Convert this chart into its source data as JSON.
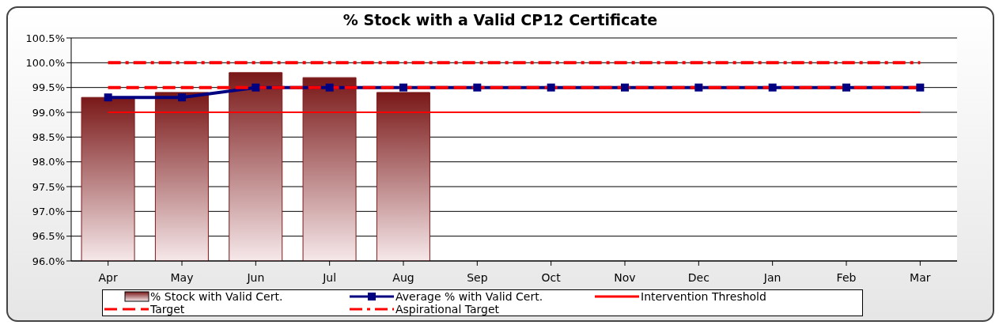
{
  "chart_data": {
    "type": "bar",
    "title": "% Stock with a Valid CP12 Certificate",
    "categories": [
      "Apr",
      "May",
      "Jun",
      "Jul",
      "Aug",
      "Sep",
      "Oct",
      "Nov",
      "Dec",
      "Jan",
      "Feb",
      "Mar"
    ],
    "series": [
      {
        "name": "% Stock with Valid Cert.",
        "color": "#7a1818",
        "values": [
          99.3,
          99.4,
          99.8,
          99.7,
          99.4,
          null,
          null,
          null,
          null,
          null,
          null,
          null
        ]
      },
      {
        "name": "Average % with Valid Cert.",
        "type": "line",
        "color": "#000080",
        "marker": "square",
        "line_style": "solid",
        "values": [
          99.3,
          99.3,
          99.5,
          99.5,
          99.5,
          99.5,
          99.5,
          99.5,
          99.5,
          99.5,
          99.5,
          99.5
        ]
      },
      {
        "name": "Intervention Threshold",
        "type": "line",
        "color": "#ff0000",
        "marker": "none",
        "line_style": "solid",
        "values": [
          99.0,
          99.0,
          99.0,
          99.0,
          99.0,
          99.0,
          99.0,
          99.0,
          99.0,
          99.0,
          99.0,
          99.0
        ]
      },
      {
        "name": "Target",
        "type": "line",
        "color": "#ff0000",
        "marker": "none",
        "line_style": "dashed",
        "values": [
          99.5,
          99.5,
          99.5,
          99.5,
          99.5,
          99.5,
          99.5,
          99.5,
          99.5,
          99.5,
          99.5,
          99.5
        ]
      },
      {
        "name": "Aspirational Target",
        "type": "line",
        "color": "#ff0000",
        "marker": "none",
        "line_style": "dashdot",
        "values": [
          100.0,
          100.0,
          100.0,
          100.0,
          100.0,
          100.0,
          100.0,
          100.0,
          100.0,
          100.0,
          100.0,
          100.0
        ]
      }
    ],
    "ylim": [
      96.0,
      100.5
    ],
    "yticks": [
      {
        "value": 96.0,
        "label": "96.0%"
      },
      {
        "value": 96.5,
        "label": "96.5%"
      },
      {
        "value": 97.0,
        "label": "97.0%"
      },
      {
        "value": 97.5,
        "label": "97.5%"
      },
      {
        "value": 98.0,
        "label": "98.0%"
      },
      {
        "value": 98.5,
        "label": "98.5%"
      },
      {
        "value": 99.0,
        "label": "99.0%"
      },
      {
        "value": 99.5,
        "label": "99.5%"
      },
      {
        "value": 100.0,
        "label": "100.0%"
      },
      {
        "value": 100.5,
        "label": "100.5%"
      }
    ],
    "grid": "y",
    "legend": "bottom"
  }
}
